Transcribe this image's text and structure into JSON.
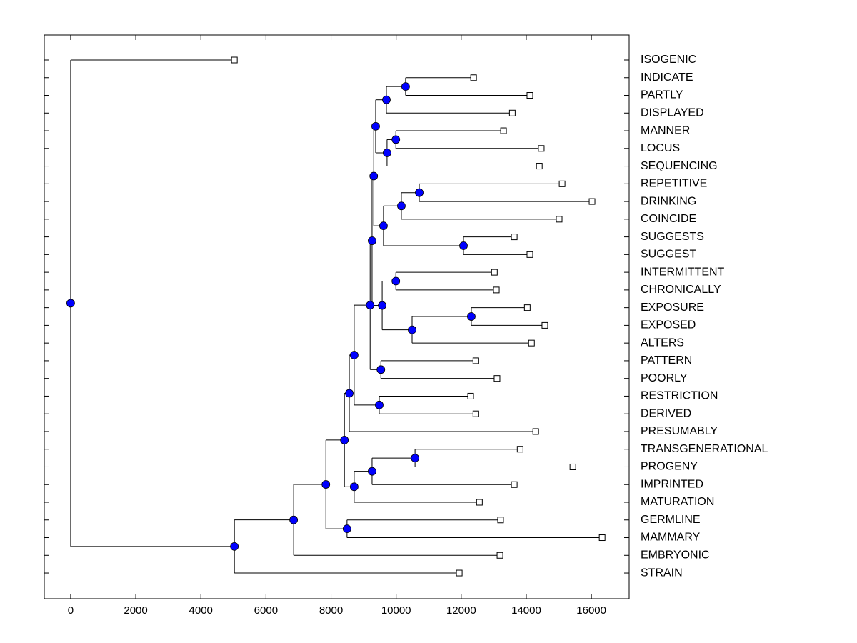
{
  "chart_data": {
    "type": "dendrogram",
    "xlim": [
      -810,
      17160
    ],
    "xticks": [
      0,
      2000,
      4000,
      6000,
      8000,
      10000,
      12000,
      14000,
      16000
    ],
    "node_color": "#0000ff",
    "tree": {
      "height": 0,
      "children": [
        {
          "label": "ISOGENIC",
          "height": 5030
        },
        {
          "height": 5030,
          "children": [
            {
              "height": 6850,
              "children": [
                {
                  "height": 7840,
                  "children": [
                    {
                      "height": 8410,
                      "children": [
                        {
                          "height": 8560,
                          "children": [
                            {
                              "height": 8710,
                              "children": [
                                {
                                  "height": 9200,
                                  "children": [
                                    {
                                      "height": 9260,
                                      "children": [
                                        {
                                          "height": 9310,
                                          "children": [
                                            {
                                              "height": 9370,
                                              "children": [
                                                {
                                                  "height": 9700,
                                                  "children": [
                                                    {
                                                      "height": 10290,
                                                      "children": [
                                                        {
                                                          "label": "INDICATE",
                                                          "height": 12380
                                                        },
                                                        {
                                                          "label": "PARTLY",
                                                          "height": 14110
                                                        }
                                                      ]
                                                    },
                                                    {
                                                      "label": "DISPLAYED",
                                                      "height": 13570
                                                    }
                                                  ]
                                                },
                                                {
                                                  "height": 9720,
                                                  "children": [
                                                    {
                                                      "height": 9990,
                                                      "children": [
                                                        {
                                                          "label": "MANNER",
                                                          "height": 13300
                                                        },
                                                        {
                                                          "label": "LOCUS",
                                                          "height": 14460
                                                        }
                                                      ]
                                                    },
                                                    {
                                                      "label": "SEQUENCING",
                                                      "height": 14400
                                                    }
                                                  ]
                                                }
                                              ]
                                            },
                                            {
                                              "height": 9610,
                                              "children": [
                                                {
                                                  "height": 10160,
                                                  "children": [
                                                    {
                                                      "height": 10710,
                                                      "children": [
                                                        {
                                                          "label": "REPETITIVE",
                                                          "height": 15100
                                                        },
                                                        {
                                                          "label": "DRINKING",
                                                          "height": 16020
                                                        }
                                                      ]
                                                    },
                                                    {
                                                      "label": "COINCIDE",
                                                      "height": 15010
                                                    }
                                                  ]
                                                },
                                                {
                                                  "height": 12070,
                                                  "children": [
                                                    {
                                                      "label": "SUGGESTS",
                                                      "height": 13630
                                                    },
                                                    {
                                                      "label": "SUGGEST",
                                                      "height": 14110
                                                    }
                                                  ]
                                                }
                                              ]
                                            }
                                          ]
                                        },
                                        {
                                          "height": 9570,
                                          "children": [
                                            {
                                              "height": 9990,
                                              "children": [
                                                {
                                                  "label": "INTERMITTENT",
                                                  "height": 13020
                                                },
                                                {
                                                  "label": "CHRONICALLY",
                                                  "height": 13080
                                                }
                                              ]
                                            },
                                            {
                                              "height": 10490,
                                              "children": [
                                                {
                                                  "height": 12310,
                                                  "children": [
                                                    {
                                                      "label": "EXPOSURE",
                                                      "height": 14030
                                                    },
                                                    {
                                                      "label": "EXPOSED",
                                                      "height": 14570
                                                    }
                                                  ]
                                                },
                                                {
                                                  "label": "ALTERS",
                                                  "height": 14160
                                                }
                                              ]
                                            }
                                          ]
                                        }
                                      ]
                                    },
                                    {
                                      "height": 9530,
                                      "children": [
                                        {
                                          "label": "PATTERN",
                                          "height": 12450
                                        },
                                        {
                                          "label": "POORLY",
                                          "height": 13100
                                        }
                                      ]
                                    }
                                  ]
                                },
                                {
                                  "height": 9480,
                                  "children": [
                                    {
                                      "label": "RESTRICTION",
                                      "height": 12290
                                    },
                                    {
                                      "label": "DERIVED",
                                      "height": 12450
                                    }
                                  ]
                                }
                              ]
                            },
                            {
                              "label": "PRESUMABLY",
                              "height": 14290
                            }
                          ]
                        },
                        {
                          "height": 8710,
                          "children": [
                            {
                              "height": 9260,
                              "children": [
                                {
                                  "height": 10580,
                                  "children": [
                                    {
                                      "label": "TRANSGENERATIONAL",
                                      "height": 13810
                                    },
                                    {
                                      "label": "PROGENY",
                                      "height": 15430
                                    }
                                  ]
                                },
                                {
                                  "label": "IMPRINTED",
                                  "height": 13630
                                }
                              ]
                            },
                            {
                              "label": "MATURATION",
                              "height": 12560
                            }
                          ]
                        }
                      ]
                    },
                    {
                      "height": 8490,
                      "children": [
                        {
                          "label": "GERMLINE",
                          "height": 13210
                        },
                        {
                          "label": "MAMMARY",
                          "height": 16330
                        }
                      ]
                    }
                  ]
                },
                {
                  "label": "EMBRYONIC",
                  "height": 13190
                }
              ]
            },
            {
              "label": "STRAIN",
              "height": 11940
            }
          ]
        }
      ]
    }
  }
}
